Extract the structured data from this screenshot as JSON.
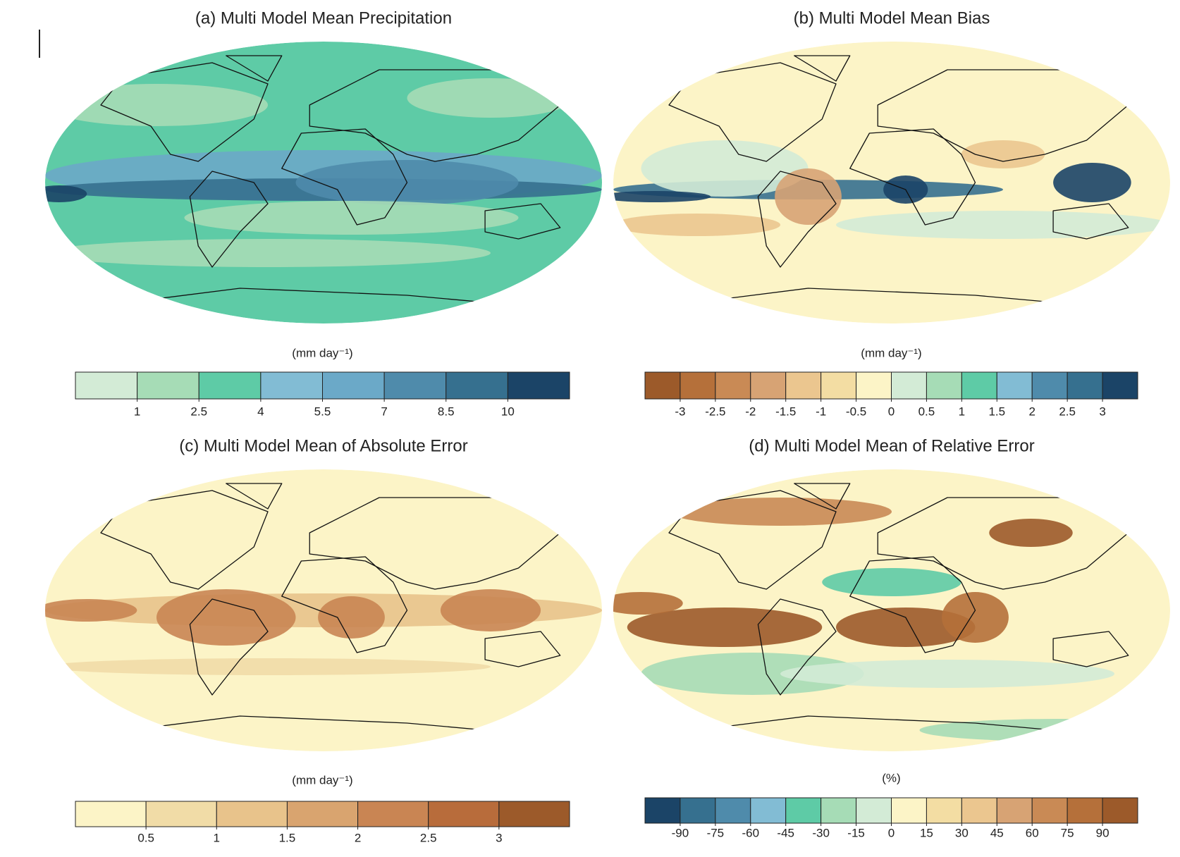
{
  "panels": [
    {
      "title": "(a) Multi Model Mean Precipitation",
      "unit": "(mm day⁻¹)",
      "colors": [
        "#d3ebd6",
        "#a6dcb6",
        "#5ecba6",
        "#82bcd4",
        "#6ba9c8",
        "#4f8bab",
        "#36708f",
        "#1b4467"
      ],
      "ticks": [
        1,
        2.5,
        4,
        5.5,
        7,
        8.5,
        10
      ]
    },
    {
      "title": "(b) Multi Model Mean Bias",
      "unit": "(mm day⁻¹)",
      "colors": [
        "#9c5a2a",
        "#b5703a",
        "#c98a55",
        "#d7a374",
        "#ebc68f",
        "#f3dda3",
        "#fcf4c7",
        "#d3ebd6",
        "#a6dcb6",
        "#5ecba6",
        "#82bcd4",
        "#4f8bab",
        "#36708f",
        "#1b4467"
      ],
      "ticks": [
        -3,
        -2.5,
        -2,
        -1.5,
        -1,
        -0.5,
        0,
        0.5,
        1,
        1.5,
        2,
        2.5,
        3
      ]
    },
    {
      "title": "(c) Multi Model Mean of Absolute Error",
      "unit": "(mm day⁻¹)",
      "colors": [
        "#fcf4c7",
        "#f1dca7",
        "#e8c38b",
        "#d9a46f",
        "#c98553",
        "#b86c3b",
        "#9c5a2a"
      ],
      "ticks": [
        0.5,
        1,
        1.5,
        2,
        2.5,
        3
      ]
    },
    {
      "title": "(d) Multi Model Mean of Relative Error",
      "unit": "(%)",
      "colors": [
        "#1b4467",
        "#36708f",
        "#4f8bab",
        "#82bcd4",
        "#5ecba6",
        "#a6dcb6",
        "#d3ebd6",
        "#fcf4c7",
        "#f3dda3",
        "#ebc68f",
        "#d7a374",
        "#c98a55",
        "#b5703a",
        "#9c5a2a"
      ],
      "ticks": [
        -90,
        -75,
        -60,
        -45,
        -30,
        -15,
        0,
        15,
        30,
        45,
        60,
        75,
        90
      ]
    }
  ]
}
